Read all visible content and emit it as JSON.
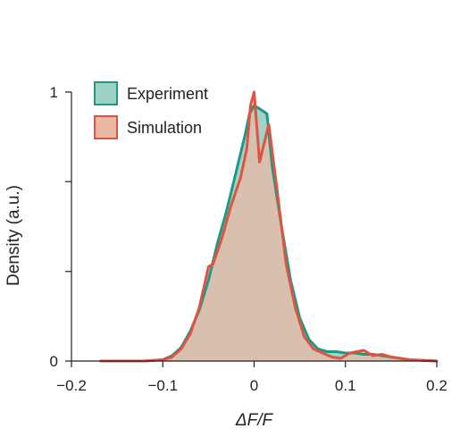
{
  "chart_data": {
    "type": "area",
    "title": "",
    "xlabel": "ΔF/F",
    "ylabel": "Density (a.u.)",
    "xlim": [
      -0.2,
      0.2
    ],
    "ylim": [
      0,
      1
    ],
    "x_ticks": [
      -0.2,
      -0.1,
      0,
      0.1,
      0.2
    ],
    "x_tick_labels": [
      "−0.2",
      "−0.1",
      "0",
      "0.1",
      "0.2"
    ],
    "y_ticks": [
      0,
      0.333,
      0.667,
      1
    ],
    "y_tick_labels": [
      "0",
      "",
      "",
      "1"
    ],
    "grid": false,
    "legend_position": "top-left",
    "series": [
      {
        "name": "Experiment",
        "stroke": "#1a9a86",
        "fill": "#9fd0c6",
        "x": [
          -0.168,
          -0.12,
          -0.1,
          -0.09,
          -0.08,
          -0.07,
          -0.06,
          -0.05,
          -0.04,
          -0.03,
          -0.02,
          -0.01,
          -0.005,
          0.0,
          0.005,
          0.014,
          0.02,
          0.03,
          0.04,
          0.05,
          0.06,
          0.07,
          0.08,
          0.09,
          0.1,
          0.11,
          0.12,
          0.13,
          0.14,
          0.15,
          0.17,
          0.2
        ],
        "y": [
          0.0,
          0.0,
          0.005,
          0.02,
          0.05,
          0.11,
          0.19,
          0.3,
          0.44,
          0.56,
          0.7,
          0.84,
          0.92,
          0.95,
          0.94,
          0.92,
          0.72,
          0.5,
          0.3,
          0.16,
          0.08,
          0.045,
          0.035,
          0.035,
          0.03,
          0.03,
          0.025,
          0.025,
          0.02,
          0.015,
          0.005,
          0.0
        ]
      },
      {
        "name": "Simulation",
        "stroke": "#dd5540",
        "fill": "#ebb8a4",
        "x": [
          -0.168,
          -0.12,
          -0.1,
          -0.09,
          -0.08,
          -0.07,
          -0.06,
          -0.05,
          -0.045,
          -0.035,
          -0.025,
          -0.015,
          -0.008,
          -0.004,
          0.0,
          0.006,
          0.016,
          0.025,
          0.035,
          0.045,
          0.055,
          0.065,
          0.075,
          0.085,
          0.095,
          0.105,
          0.12,
          0.13,
          0.14,
          0.15,
          0.17,
          0.2
        ],
        "y": [
          0.0,
          0.0,
          0.005,
          0.015,
          0.045,
          0.1,
          0.2,
          0.35,
          0.36,
          0.46,
          0.58,
          0.68,
          0.79,
          0.95,
          1.0,
          0.74,
          0.88,
          0.64,
          0.36,
          0.2,
          0.09,
          0.045,
          0.03,
          0.015,
          0.01,
          0.03,
          0.04,
          0.02,
          0.025,
          0.015,
          0.005,
          0.0
        ]
      }
    ]
  }
}
